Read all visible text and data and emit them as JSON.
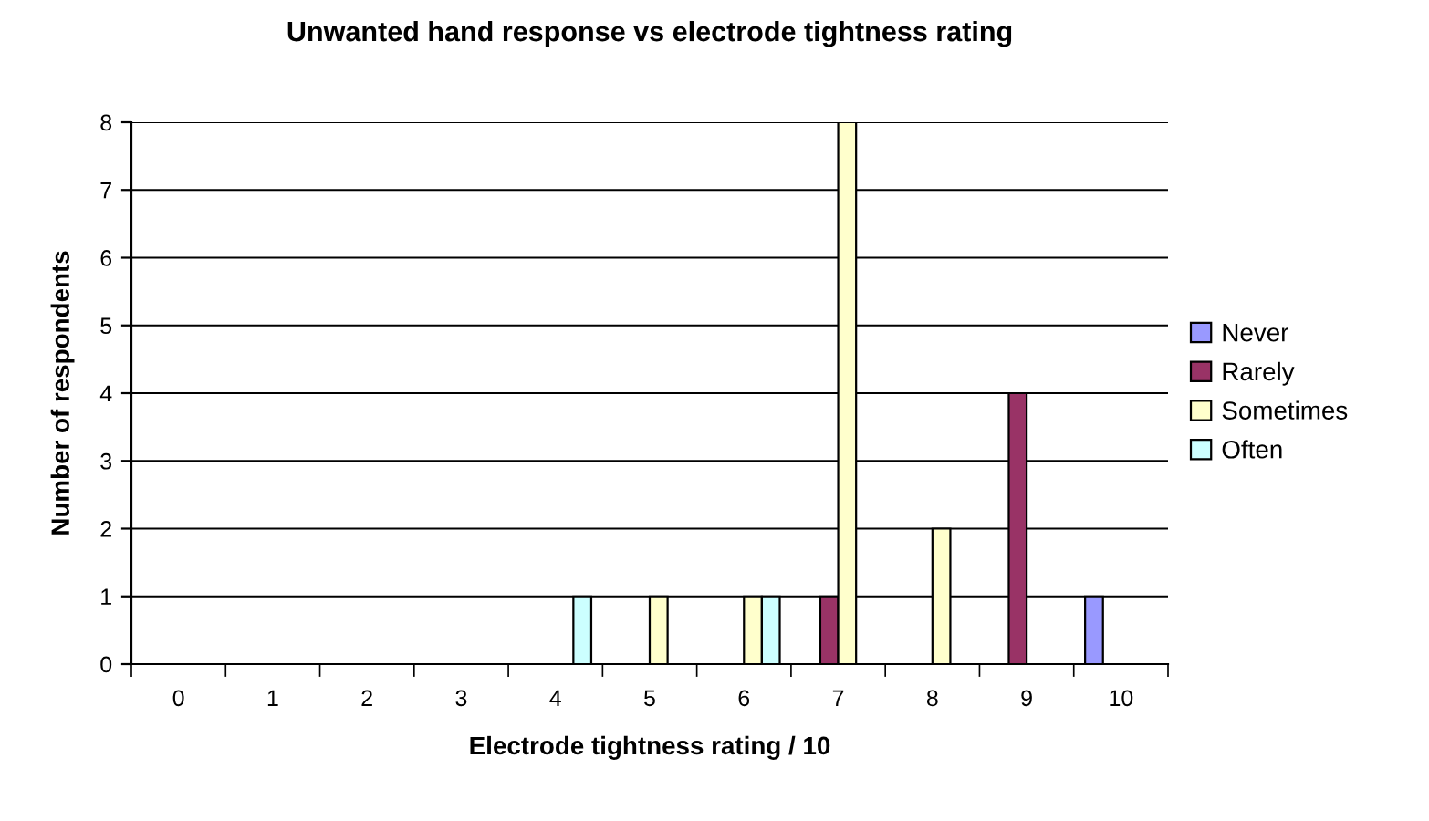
{
  "chart_data": {
    "type": "bar",
    "title": "Unwanted hand response vs electrode tightness rating",
    "xlabel": "Electrode tightness rating / 10",
    "ylabel": "Number of respondents",
    "categories": [
      "0",
      "1",
      "2",
      "3",
      "4",
      "5",
      "6",
      "7",
      "8",
      "9",
      "10"
    ],
    "series": [
      {
        "name": "Never",
        "color": "#9999ff",
        "values": [
          null,
          null,
          null,
          null,
          null,
          null,
          null,
          null,
          null,
          null,
          1
        ]
      },
      {
        "name": "Rarely",
        "color": "#993366",
        "values": [
          null,
          null,
          null,
          null,
          null,
          null,
          null,
          1,
          null,
          4,
          null
        ]
      },
      {
        "name": "Sometimes",
        "color": "#ffffcc",
        "values": [
          null,
          null,
          null,
          null,
          null,
          1,
          1,
          8,
          2,
          null,
          null
        ]
      },
      {
        "name": "Often",
        "color": "#ccffff",
        "values": [
          null,
          null,
          null,
          null,
          1,
          null,
          1,
          null,
          null,
          null,
          null
        ]
      }
    ],
    "ylim": [
      0,
      8
    ],
    "yticks": [
      0,
      1,
      2,
      3,
      4,
      5,
      6,
      7,
      8
    ],
    "grid": "y",
    "legend": "right"
  }
}
